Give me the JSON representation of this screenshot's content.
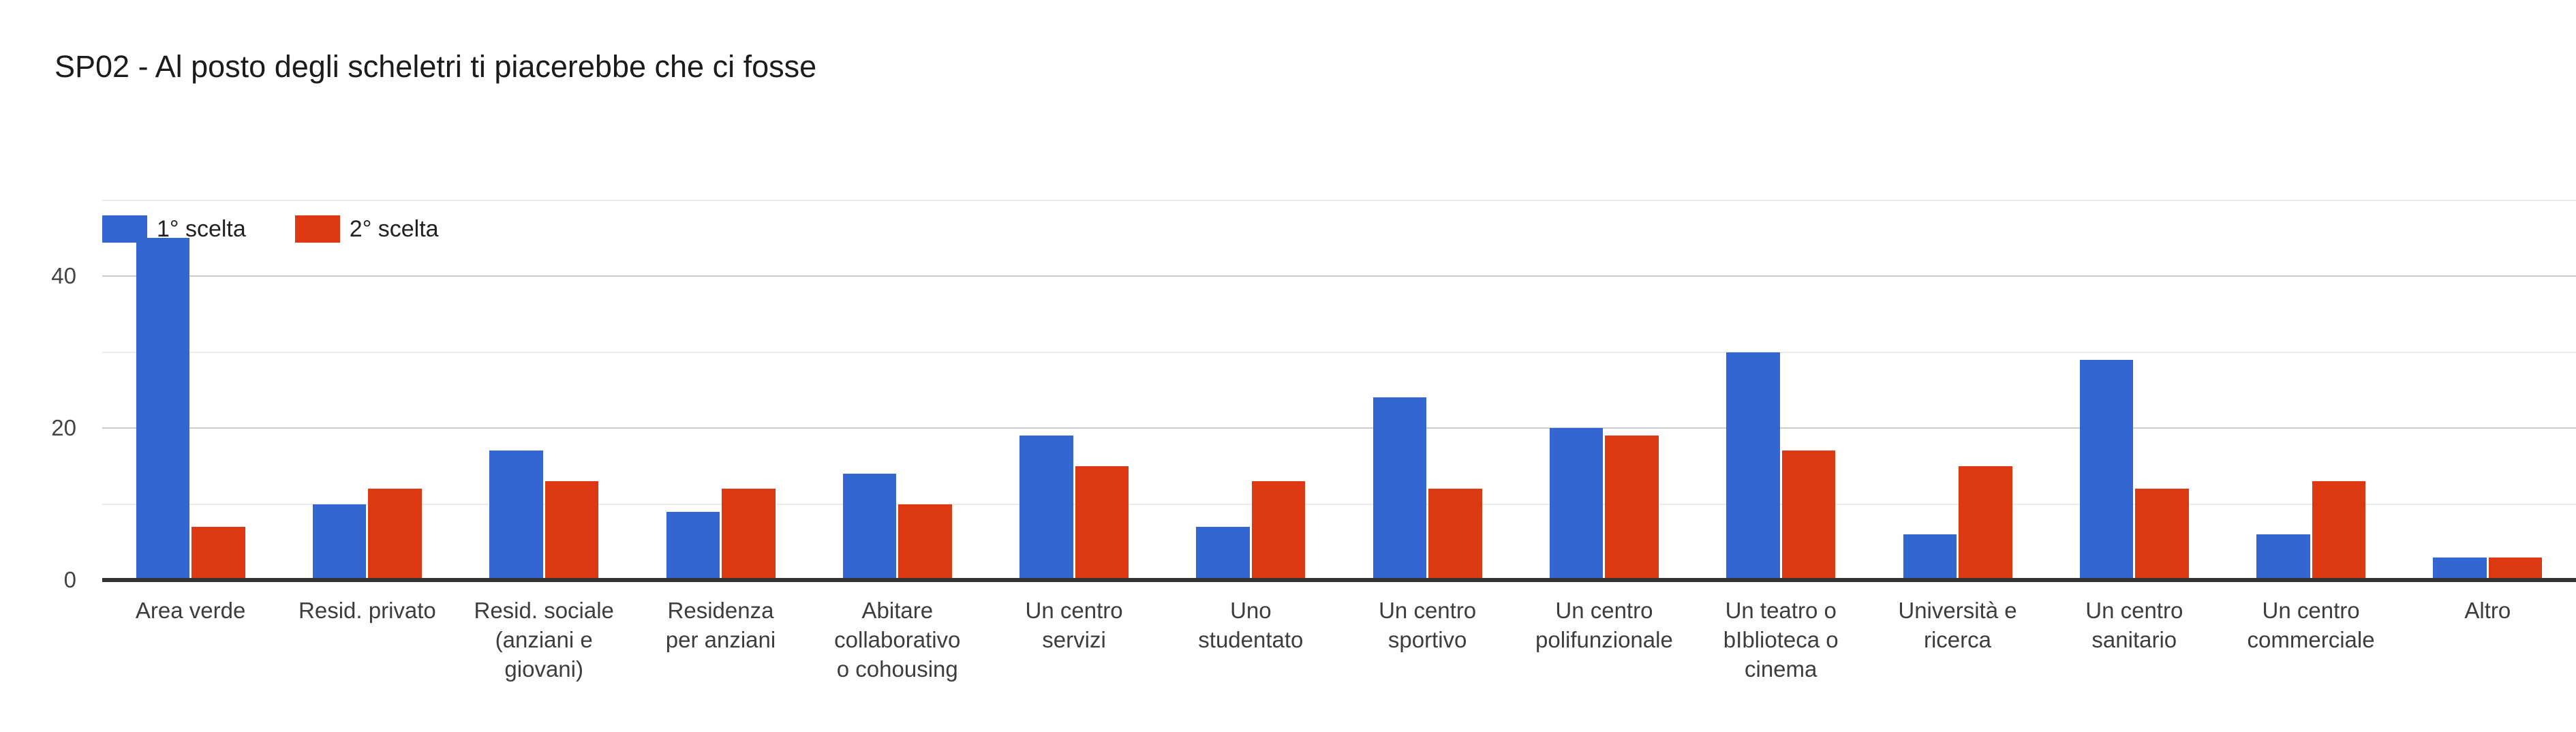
{
  "header": {
    "title": "SP02 - Al posto degli scheletri ti piacerebbe che ci fosse"
  },
  "colors": {
    "series1": "#3466d1",
    "series2": "#dc3912",
    "baseline": "#333333",
    "major_gridline": "#cccccc",
    "minor_gridline": "#ebebeb",
    "title_text": "#1b1b1b",
    "axis_text": "#444444"
  },
  "legend": {
    "items": [
      {
        "label": "1° scelta",
        "color": "#3466d1"
      },
      {
        "label": "2° scelta",
        "color": "#dc3912"
      }
    ]
  },
  "chart_data": {
    "type": "bar",
    "title": "SP02 - Al posto degli scheletri ti piacerebbe che ci fosse",
    "categories": [
      "Area verde",
      "Resid. privato",
      "Resid. sociale (anziani e giovani)",
      "Residenza per anziani",
      "Abitare collaborativo o cohousing",
      "Un centro servizi",
      "Uno studentato",
      "Un centro sportivo",
      "Un centro polifunzionale",
      "Un teatro o bIblioteca o cinema",
      "Università e ricerca",
      "Un centro sanitario",
      "Un centro commerciale",
      "Altro"
    ],
    "category_label_lines": [
      [
        "Area verde"
      ],
      [
        "Resid. privato"
      ],
      [
        "Resid. sociale",
        "(anziani e",
        "giovani)"
      ],
      [
        "Residenza",
        "per anziani"
      ],
      [
        "Abitare",
        "collaborativo",
        "o cohousing"
      ],
      [
        "Un centro",
        "servizi"
      ],
      [
        "Uno",
        "studentato"
      ],
      [
        "Un centro",
        "sportivo"
      ],
      [
        "Un centro",
        "polifunzionale"
      ],
      [
        "Un teatro o",
        "bIblioteca o",
        "cinema"
      ],
      [
        "Università e",
        "ricerca"
      ],
      [
        "Un centro",
        "sanitario"
      ],
      [
        "Un centro",
        "commerciale"
      ],
      [
        "Altro"
      ]
    ],
    "series": [
      {
        "name": "1° scelta",
        "color": "#3466d1",
        "values": [
          45,
          10,
          17,
          9,
          14,
          19,
          7,
          24,
          20,
          30,
          6,
          29,
          6,
          3
        ]
      },
      {
        "name": "2° scelta",
        "color": "#dc3912",
        "values": [
          7,
          12,
          13,
          12,
          10,
          15,
          13,
          12,
          19,
          17,
          15,
          12,
          13,
          3
        ]
      }
    ],
    "xlabel": "",
    "ylabel": "",
    "ylim": [
      0,
      50
    ],
    "yticks": [
      0,
      20,
      40
    ],
    "minor_grid_values": [
      10,
      30,
      50
    ],
    "grid": true,
    "legend_position": "top-left"
  }
}
